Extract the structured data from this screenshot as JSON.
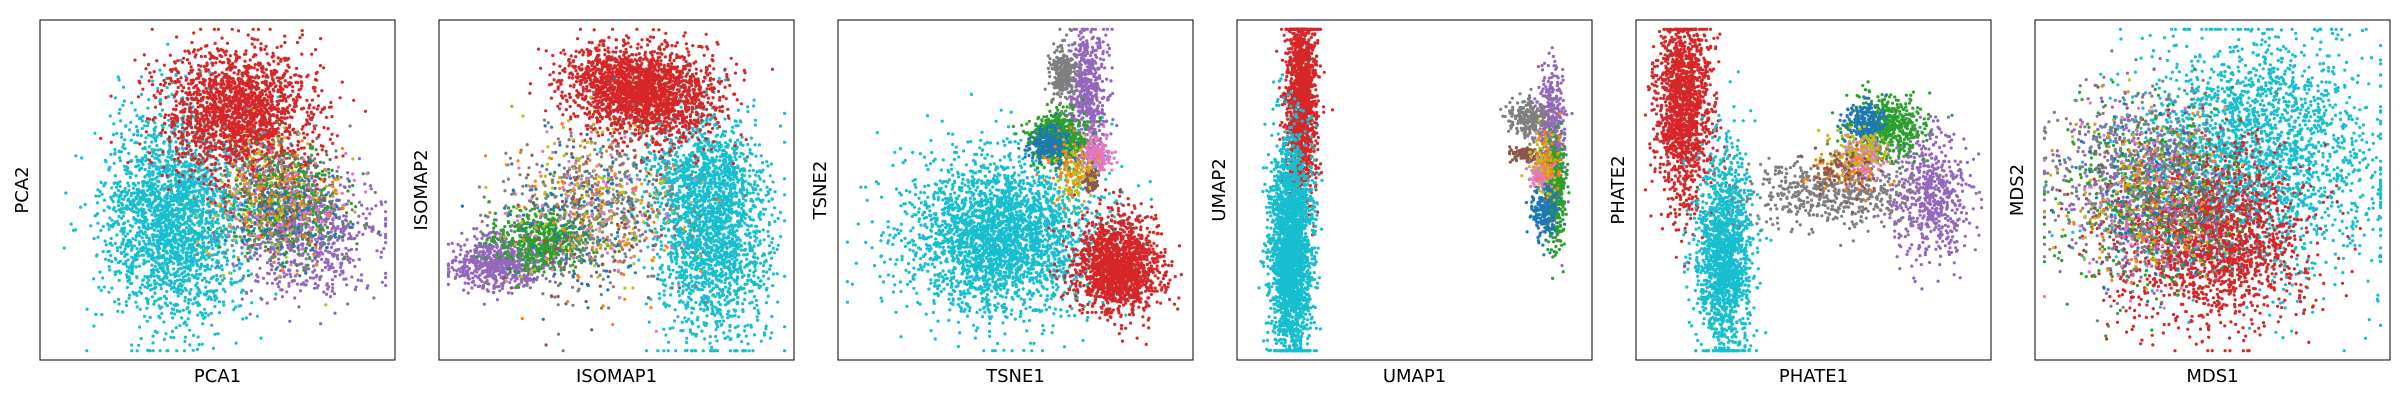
{
  "palette": {
    "red": "#d62728",
    "cyan": "#17becf",
    "purple": "#9467bd",
    "green": "#2ca02c",
    "gray": "#7f7f7f",
    "blue": "#1f77b4",
    "pink": "#e377c2",
    "brown": "#8c564b",
    "olive": "#bcbd22",
    "orange": "#ff7f0e"
  },
  "chart_data": [
    {
      "type": "scatter",
      "xlabel": "PCA1",
      "ylabel": "PCA2",
      "xlim": [
        0,
        1
      ],
      "ylim": [
        0,
        1
      ],
      "grid": false,
      "ticks": false,
      "clusters": [
        {
          "color": "cyan",
          "cx": 0.38,
          "cy": 0.42,
          "sx": 0.1,
          "sy": 0.16,
          "n": 2400
        },
        {
          "color": "red",
          "cx": 0.56,
          "cy": 0.73,
          "sx": 0.11,
          "sy": 0.1,
          "n": 1900
        },
        {
          "color": "purple",
          "cx": 0.77,
          "cy": 0.36,
          "sx": 0.1,
          "sy": 0.09,
          "n": 650
        },
        {
          "color": "green",
          "cx": 0.7,
          "cy": 0.46,
          "sx": 0.08,
          "sy": 0.08,
          "n": 450
        },
        {
          "color": "gray",
          "cx": 0.66,
          "cy": 0.47,
          "sx": 0.09,
          "sy": 0.09,
          "n": 250
        },
        {
          "color": "olive",
          "cx": 0.65,
          "cy": 0.48,
          "sx": 0.09,
          "sy": 0.09,
          "n": 150
        },
        {
          "color": "blue",
          "cx": 0.72,
          "cy": 0.43,
          "sx": 0.08,
          "sy": 0.08,
          "n": 150
        },
        {
          "color": "pink",
          "cx": 0.7,
          "cy": 0.45,
          "sx": 0.08,
          "sy": 0.08,
          "n": 120
        },
        {
          "color": "orange",
          "cx": 0.67,
          "cy": 0.48,
          "sx": 0.09,
          "sy": 0.09,
          "n": 100
        },
        {
          "color": "brown",
          "cx": 0.68,
          "cy": 0.46,
          "sx": 0.08,
          "sy": 0.08,
          "n": 80
        }
      ]
    },
    {
      "type": "scatter",
      "xlabel": "ISOMAP1",
      "ylabel": "ISOMAP2",
      "xlim": [
        0,
        1
      ],
      "ylim": [
        0,
        1
      ],
      "grid": false,
      "ticks": false,
      "clusters": [
        {
          "color": "cyan",
          "cx": 0.78,
          "cy": 0.37,
          "sx": 0.08,
          "sy": 0.16,
          "n": 1800
        },
        {
          "color": "cyan",
          "cx": 0.73,
          "cy": 0.54,
          "sx": 0.09,
          "sy": 0.09,
          "n": 500
        },
        {
          "color": "red",
          "cx": 0.6,
          "cy": 0.79,
          "sx": 0.1,
          "sy": 0.07,
          "n": 1600
        },
        {
          "color": "red",
          "cx": 0.48,
          "cy": 0.84,
          "sx": 0.07,
          "sy": 0.06,
          "n": 500
        },
        {
          "color": "purple",
          "cx": 0.16,
          "cy": 0.28,
          "sx": 0.07,
          "sy": 0.04,
          "n": 700
        },
        {
          "color": "green",
          "cx": 0.29,
          "cy": 0.35,
          "sx": 0.07,
          "sy": 0.05,
          "n": 600
        },
        {
          "color": "gray",
          "cx": 0.44,
          "cy": 0.45,
          "sx": 0.13,
          "sy": 0.12,
          "n": 450
        },
        {
          "color": "blue",
          "cx": 0.4,
          "cy": 0.42,
          "sx": 0.12,
          "sy": 0.12,
          "n": 160
        },
        {
          "color": "olive",
          "cx": 0.45,
          "cy": 0.45,
          "sx": 0.12,
          "sy": 0.12,
          "n": 150
        },
        {
          "color": "pink",
          "cx": 0.42,
          "cy": 0.42,
          "sx": 0.12,
          "sy": 0.12,
          "n": 120
        },
        {
          "color": "orange",
          "cx": 0.45,
          "cy": 0.45,
          "sx": 0.12,
          "sy": 0.12,
          "n": 100
        },
        {
          "color": "brown",
          "cx": 0.42,
          "cy": 0.4,
          "sx": 0.12,
          "sy": 0.12,
          "n": 80
        }
      ]
    },
    {
      "type": "scatter",
      "xlabel": "TSNE1",
      "ylabel": "TSNE2",
      "xlim": [
        0,
        1
      ],
      "ylim": [
        0,
        1
      ],
      "grid": false,
      "ticks": false,
      "clusters": [
        {
          "color": "cyan",
          "cx": 0.46,
          "cy": 0.36,
          "sx": 0.14,
          "sy": 0.12,
          "n": 2800
        },
        {
          "color": "red",
          "cx": 0.8,
          "cy": 0.27,
          "sx": 0.06,
          "sy": 0.07,
          "n": 1600
        },
        {
          "color": "purple",
          "cx": 0.71,
          "cy": 0.78,
          "sx": 0.03,
          "sy": 0.11,
          "n": 600
        },
        {
          "color": "green",
          "cx": 0.62,
          "cy": 0.66,
          "sx": 0.04,
          "sy": 0.04,
          "n": 600
        },
        {
          "color": "gray",
          "cx": 0.64,
          "cy": 0.86,
          "sx": 0.02,
          "sy": 0.04,
          "n": 250
        },
        {
          "color": "blue",
          "cx": 0.6,
          "cy": 0.64,
          "sx": 0.03,
          "sy": 0.03,
          "n": 200
        },
        {
          "color": "pink",
          "cx": 0.74,
          "cy": 0.61,
          "sx": 0.02,
          "sy": 0.03,
          "n": 160
        },
        {
          "color": "brown",
          "cx": 0.72,
          "cy": 0.53,
          "sx": 0.01,
          "sy": 0.02,
          "n": 90
        },
        {
          "color": "olive",
          "cx": 0.68,
          "cy": 0.55,
          "sx": 0.03,
          "sy": 0.05,
          "n": 100
        },
        {
          "color": "orange",
          "cx": 0.66,
          "cy": 0.58,
          "sx": 0.03,
          "sy": 0.05,
          "n": 60
        }
      ]
    },
    {
      "type": "scatter",
      "xlabel": "UMAP1",
      "ylabel": "UMAP2",
      "xlim": [
        0,
        1
      ],
      "ylim": [
        0,
        1
      ],
      "grid": false,
      "ticks": false,
      "clusters": [
        {
          "color": "red",
          "cx": 0.17,
          "cy": 0.77,
          "sx": 0.022,
          "sy": 0.15,
          "n": 1500
        },
        {
          "color": "cyan",
          "cx": 0.14,
          "cy": 0.32,
          "sx": 0.03,
          "sy": 0.16,
          "n": 2400
        },
        {
          "color": "purple",
          "cx": 0.9,
          "cy": 0.65,
          "sx": 0.02,
          "sy": 0.12,
          "n": 500
        },
        {
          "color": "green",
          "cx": 0.91,
          "cy": 0.5,
          "sx": 0.015,
          "sy": 0.08,
          "n": 400
        },
        {
          "color": "gray",
          "cx": 0.83,
          "cy": 0.72,
          "sx": 0.03,
          "sy": 0.03,
          "n": 200
        },
        {
          "color": "blue",
          "cx": 0.88,
          "cy": 0.44,
          "sx": 0.02,
          "sy": 0.04,
          "n": 200
        },
        {
          "color": "pink",
          "cx": 0.87,
          "cy": 0.55,
          "sx": 0.015,
          "sy": 0.02,
          "n": 150
        },
        {
          "color": "brown",
          "cx": 0.82,
          "cy": 0.61,
          "sx": 0.02,
          "sy": 0.01,
          "n": 100
        },
        {
          "color": "olive",
          "cx": 0.88,
          "cy": 0.58,
          "sx": 0.02,
          "sy": 0.05,
          "n": 80
        },
        {
          "color": "orange",
          "cx": 0.89,
          "cy": 0.6,
          "sx": 0.02,
          "sy": 0.05,
          "n": 40
        }
      ]
    },
    {
      "type": "scatter",
      "xlabel": "PHATE1",
      "ylabel": "PHATE2",
      "xlim": [
        0,
        1
      ],
      "ylim": [
        0,
        1
      ],
      "grid": false,
      "ticks": false,
      "clusters": [
        {
          "color": "red",
          "cx": 0.12,
          "cy": 0.75,
          "sx": 0.04,
          "sy": 0.14,
          "n": 1500
        },
        {
          "color": "cyan",
          "cx": 0.24,
          "cy": 0.3,
          "sx": 0.04,
          "sy": 0.15,
          "n": 1600
        },
        {
          "color": "purple",
          "cx": 0.84,
          "cy": 0.48,
          "sx": 0.06,
          "sy": 0.1,
          "n": 600
        },
        {
          "color": "green",
          "cx": 0.72,
          "cy": 0.69,
          "sx": 0.05,
          "sy": 0.05,
          "n": 500
        },
        {
          "color": "gray",
          "cx": 0.55,
          "cy": 0.49,
          "sx": 0.12,
          "sy": 0.05,
          "n": 500
        },
        {
          "color": "blue",
          "cx": 0.65,
          "cy": 0.71,
          "sx": 0.03,
          "sy": 0.03,
          "n": 200
        },
        {
          "color": "pink",
          "cx": 0.64,
          "cy": 0.6,
          "sx": 0.03,
          "sy": 0.03,
          "n": 160
        },
        {
          "color": "orange",
          "cx": 0.6,
          "cy": 0.57,
          "sx": 0.06,
          "sy": 0.04,
          "n": 80
        },
        {
          "color": "olive",
          "cx": 0.63,
          "cy": 0.62,
          "sx": 0.05,
          "sy": 0.04,
          "n": 100
        },
        {
          "color": "brown",
          "cx": 0.58,
          "cy": 0.55,
          "sx": 0.05,
          "sy": 0.04,
          "n": 80
        }
      ]
    },
    {
      "type": "scatter",
      "xlabel": "MDS1",
      "ylabel": "MDS2",
      "xlim": [
        0,
        1
      ],
      "ylim": [
        0,
        1
      ],
      "grid": false,
      "ticks": false,
      "clusters": [
        {
          "color": "cyan",
          "cx": 0.62,
          "cy": 0.6,
          "sx": 0.18,
          "sy": 0.18,
          "n": 2500
        },
        {
          "color": "red",
          "cx": 0.5,
          "cy": 0.35,
          "sx": 0.14,
          "sy": 0.13,
          "n": 1800
        },
        {
          "color": "purple",
          "cx": 0.28,
          "cy": 0.53,
          "sx": 0.12,
          "sy": 0.14,
          "n": 500
        },
        {
          "color": "green",
          "cx": 0.32,
          "cy": 0.48,
          "sx": 0.12,
          "sy": 0.14,
          "n": 450
        },
        {
          "color": "gray",
          "cx": 0.3,
          "cy": 0.52,
          "sx": 0.12,
          "sy": 0.14,
          "n": 400
        },
        {
          "color": "blue",
          "cx": 0.31,
          "cy": 0.5,
          "sx": 0.11,
          "sy": 0.13,
          "n": 160
        },
        {
          "color": "pink",
          "cx": 0.33,
          "cy": 0.45,
          "sx": 0.11,
          "sy": 0.13,
          "n": 150
        },
        {
          "color": "olive",
          "cx": 0.32,
          "cy": 0.48,
          "sx": 0.12,
          "sy": 0.13,
          "n": 120
        },
        {
          "color": "orange",
          "cx": 0.31,
          "cy": 0.47,
          "sx": 0.12,
          "sy": 0.13,
          "n": 100
        },
        {
          "color": "brown",
          "cx": 0.32,
          "cy": 0.5,
          "sx": 0.12,
          "sy": 0.13,
          "n": 80
        }
      ]
    }
  ]
}
